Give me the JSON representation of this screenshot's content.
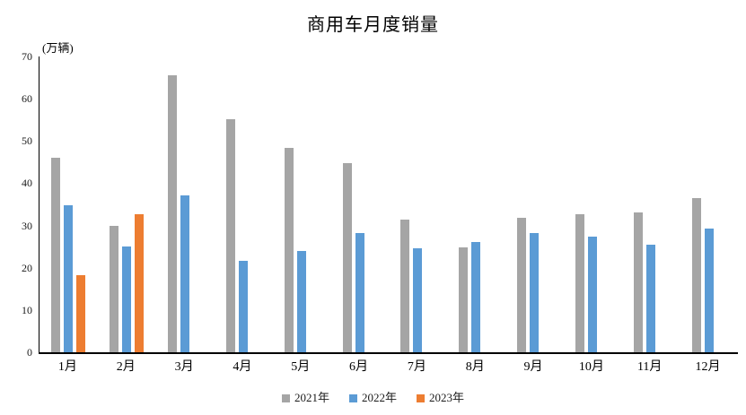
{
  "title": "商用车月度销量",
  "unit_label": "(万辆)",
  "chart_data": {
    "type": "bar",
    "title": "商用车月度销量",
    "xlabel": "",
    "ylabel": "(万辆)",
    "categories": [
      "1月",
      "2月",
      "3月",
      "4月",
      "5月",
      "6月",
      "7月",
      "8月",
      "9月",
      "10月",
      "11月",
      "12月"
    ],
    "series": [
      {
        "name": "2021年",
        "color": "#A5A5A5",
        "values": [
          46.1,
          30.0,
          65.5,
          55.1,
          48.3,
          44.7,
          31.4,
          24.8,
          31.8,
          32.6,
          33.0,
          36.5
        ]
      },
      {
        "name": "2022年",
        "color": "#5B9BD5",
        "values": [
          34.7,
          25.1,
          37.1,
          21.7,
          24.0,
          28.2,
          24.6,
          26.0,
          28.2,
          27.3,
          25.4,
          29.2
        ]
      },
      {
        "name": "2023年",
        "color": "#ED7D31",
        "values": [
          18.2,
          32.6,
          null,
          null,
          null,
          null,
          null,
          null,
          null,
          null,
          null,
          null
        ]
      }
    ],
    "ylim": [
      0,
      70
    ],
    "yticks": [
      0,
      10,
      20,
      30,
      40,
      50,
      60,
      70
    ],
    "grid": false,
    "legend_position": "bottom"
  }
}
